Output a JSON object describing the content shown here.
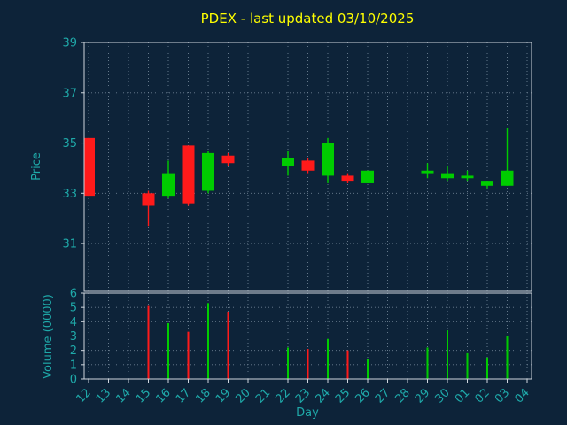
{
  "chart_data": {
    "type": "candlestick",
    "title": "PDEX - last updated 03/10/2025",
    "xlabel": "Day",
    "ylabel_price": "Price",
    "ylabel_volume": "Volume (0000)",
    "price_ylim": [
      29.1,
      39
    ],
    "price_ticks": [
      31,
      33,
      35,
      37,
      39
    ],
    "volume_ylim": [
      0,
      6
    ],
    "volume_ticks": [
      0,
      1,
      2,
      3,
      4,
      5,
      6
    ],
    "grid": "dotted",
    "legend": "none",
    "categories": [
      "12",
      "13",
      "14",
      "15",
      "16",
      "17",
      "18",
      "19",
      "20",
      "21",
      "22",
      "23",
      "24",
      "25",
      "26",
      "27",
      "28",
      "29",
      "30",
      "01",
      "02",
      "03",
      "04"
    ],
    "series": [
      {
        "day": "12",
        "open": 35.2,
        "high": 35.2,
        "low": 32.9,
        "close": 32.9,
        "volume": 0
      },
      {
        "day": "15",
        "open": 33.0,
        "high": 33.1,
        "low": 31.7,
        "close": 32.5,
        "volume": 5.1
      },
      {
        "day": "16",
        "open": 32.9,
        "high": 34.3,
        "low": 32.8,
        "close": 33.8,
        "volume": 3.9
      },
      {
        "day": "17",
        "open": 34.9,
        "high": 34.9,
        "low": 32.5,
        "close": 32.6,
        "volume": 3.3
      },
      {
        "day": "18",
        "open": 33.1,
        "high": 34.7,
        "low": 33.0,
        "close": 34.6,
        "volume": 5.3
      },
      {
        "day": "19",
        "open": 34.5,
        "high": 34.6,
        "low": 34.1,
        "close": 34.2,
        "volume": 4.7
      },
      {
        "day": "22",
        "open": 34.1,
        "high": 34.7,
        "low": 33.7,
        "close": 34.4,
        "volume": 2.2
      },
      {
        "day": "23",
        "open": 34.3,
        "high": 34.4,
        "low": 33.8,
        "close": 33.9,
        "volume": 2.1
      },
      {
        "day": "24",
        "open": 33.7,
        "high": 35.2,
        "low": 33.4,
        "close": 35.0,
        "volume": 2.8
      },
      {
        "day": "25",
        "open": 33.7,
        "high": 33.8,
        "low": 33.4,
        "close": 33.5,
        "volume": 2.0
      },
      {
        "day": "26",
        "open": 33.4,
        "high": 33.9,
        "low": 33.4,
        "close": 33.9,
        "volume": 1.4
      },
      {
        "day": "29",
        "open": 33.8,
        "high": 34.2,
        "low": 33.6,
        "close": 33.9,
        "volume": 2.2
      },
      {
        "day": "30",
        "open": 33.6,
        "high": 34.1,
        "low": 33.5,
        "close": 33.8,
        "volume": 3.4
      },
      {
        "day": "01",
        "open": 33.6,
        "high": 33.9,
        "low": 33.5,
        "close": 33.7,
        "volume": 1.8
      },
      {
        "day": "02",
        "open": 33.3,
        "high": 33.5,
        "low": 33.2,
        "close": 33.5,
        "volume": 1.5
      },
      {
        "day": "03",
        "open": 33.3,
        "high": 35.6,
        "low": 33.3,
        "close": 33.9,
        "volume": 3.0
      }
    ],
    "colors": {
      "background": "#0d2339",
      "up": "#00cc00",
      "down": "#ff1a1a",
      "title": "#ffff00",
      "axis_text": "#1fa9a9",
      "grid": "#aebfd0",
      "spine": "#cfd6dd"
    }
  }
}
